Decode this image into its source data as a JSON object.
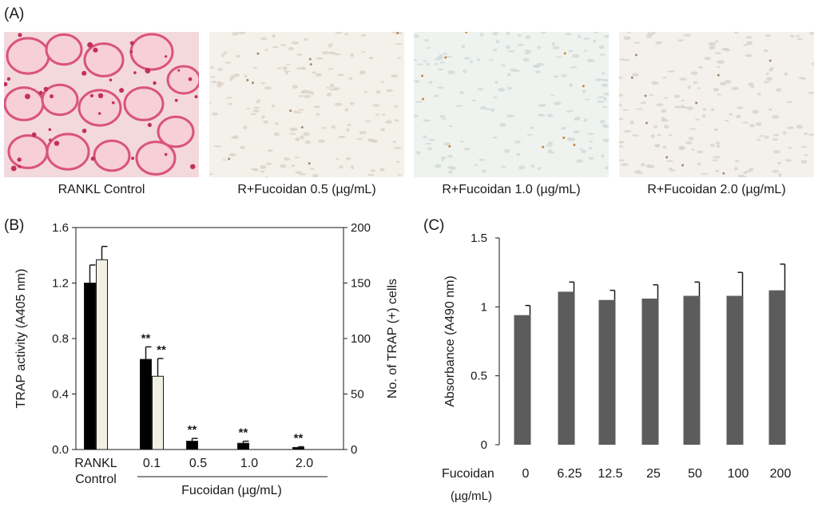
{
  "panel_labels": {
    "a": "(A)",
    "b": "(B)",
    "c": "(C)"
  },
  "panel_a": {
    "images": [
      {
        "caption": "RANKL Control",
        "tone": "#e8a6b6",
        "base": "#f3d9dc"
      },
      {
        "caption": "R+Fucoidan 0.5 (µg/mL)",
        "tone": "#d9d2c9",
        "base": "#f4f1ea"
      },
      {
        "caption": "R+Fucoidan 1.0 (µg/mL)",
        "tone": "#cfd9d6",
        "base": "#eef3f0"
      },
      {
        "caption": "R+Fucoidan  2.0 (µg/mL)",
        "tone": "#d6d2cc",
        "base": "#f4f1ec"
      }
    ]
  },
  "chart_data": [
    {
      "type": "bar",
      "panel": "B",
      "categories": [
        "RANKL Control",
        "0.1",
        "0.5",
        "1.0",
        "2.0"
      ],
      "x_tick_labels": [
        "RANKL",
        "Control",
        "0.1",
        "0.5",
        "1.0",
        "2.0"
      ],
      "xlabel": "Fucoidan  (µg/mL)",
      "ylabel_left": "TRAP activity (A405 nm)",
      "ylabel_right": "No. of TRAP (+) cells",
      "ylim_left": [
        0,
        1.6
      ],
      "ylim_right": [
        0,
        200
      ],
      "yticks_left": [
        "0.0",
        "0.4",
        "0.8",
        "1.2",
        "1.6"
      ],
      "yticks_right": [
        "0",
        "50",
        "100",
        "150",
        "200"
      ],
      "series": [
        {
          "axis": "left",
          "color": "#000000",
          "values": [
            1.2,
            0.65,
            0.06,
            0.045,
            0.015
          ],
          "errors": [
            0.13,
            0.09,
            0.02,
            0.015,
            0.005
          ]
        },
        {
          "axis": "right",
          "color": "#f1f0e2",
          "values": [
            171,
            66,
            0,
            0,
            0
          ],
          "errors": [
            12,
            16,
            0,
            0,
            0
          ]
        }
      ],
      "significance": [
        {
          "category": "0.1",
          "series": 0,
          "label": "**"
        },
        {
          "category": "0.1",
          "series": 1,
          "label": "**"
        },
        {
          "category": "0.5",
          "series": 0,
          "label": "**"
        },
        {
          "category": "1.0",
          "series": 0,
          "label": "**"
        },
        {
          "category": "2.0",
          "series": 0,
          "label": "**"
        }
      ]
    },
    {
      "type": "bar",
      "panel": "C",
      "categories": [
        "0",
        "6.25",
        "12.5",
        "25",
        "50",
        "100",
        "200"
      ],
      "values": [
        0.94,
        1.11,
        1.05,
        1.06,
        1.08,
        1.08,
        1.12
      ],
      "errors": [
        0.07,
        0.07,
        0.07,
        0.1,
        0.1,
        0.17,
        0.19
      ],
      "bar_color": "#5c5c5c",
      "ylabel": "Absorbance (A490 nm)",
      "xlabel": "Fucoidan",
      "xlabel_unit": "(µg/mL)",
      "ylim": [
        0,
        1.5
      ],
      "yticks": [
        "0",
        "0.5",
        "1",
        "1.5"
      ]
    }
  ]
}
